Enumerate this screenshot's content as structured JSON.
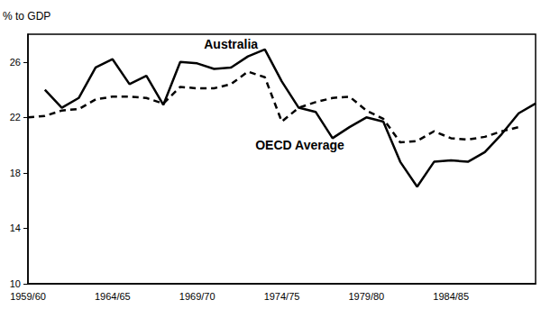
{
  "chart_data": {
    "type": "line",
    "y_label": "% to GDP",
    "categories": [
      "1959/60",
      null,
      null,
      null,
      null,
      "1964/65",
      null,
      null,
      null,
      null,
      "1969/70",
      null,
      null,
      null,
      null,
      "1974/75",
      null,
      null,
      null,
      null,
      "1979/80",
      null,
      null,
      null,
      null,
      "1984/85",
      null,
      null,
      null,
      null,
      null
    ],
    "series": [
      {
        "name": "Australia",
        "color": "#000000",
        "line_style": "solid",
        "values": [
          null,
          24.0,
          22.7,
          23.4,
          25.6,
          26.2,
          24.4,
          25.0,
          22.9,
          26.0,
          25.9,
          25.5,
          25.6,
          26.4,
          26.9,
          24.6,
          22.7,
          22.4,
          20.5,
          21.3,
          22.0,
          21.7,
          18.8,
          17.0,
          18.8,
          18.9,
          18.8,
          19.5,
          20.8,
          22.3,
          23.0
        ]
      },
      {
        "name": "OECD Average",
        "color": "#000000",
        "line_style": "dashed",
        "values": [
          22.0,
          22.1,
          22.5,
          22.6,
          23.3,
          23.5,
          23.5,
          23.4,
          23.0,
          24.2,
          24.1,
          24.1,
          24.4,
          25.3,
          24.9,
          21.7,
          22.7,
          23.1,
          23.4,
          23.5,
          22.5,
          21.9,
          20.2,
          20.3,
          21.0,
          20.5,
          20.4,
          20.6,
          21.0,
          21.3,
          null
        ]
      }
    ],
    "ylim": [
      10,
      28
    ],
    "yticks": [
      10,
      14,
      18,
      22,
      26
    ],
    "grid": false
  }
}
